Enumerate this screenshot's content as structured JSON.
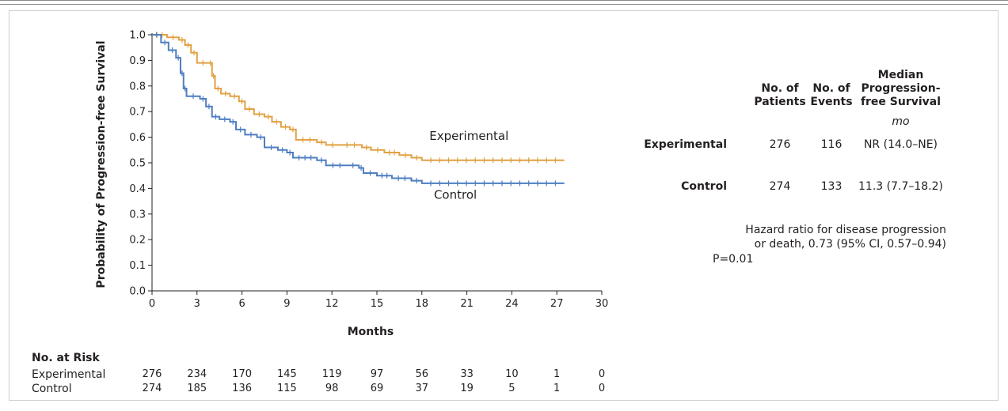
{
  "chart_data": {
    "type": "line",
    "title": "",
    "xlabel": "Months",
    "ylabel": "Probability of Progression-free Survival",
    "xlim": [
      0,
      30
    ],
    "ylim": [
      0,
      1.0
    ],
    "x_ticks": [
      "0",
      "3",
      "6",
      "9",
      "12",
      "15",
      "18",
      "21",
      "24",
      "27",
      "30"
    ],
    "y_ticks": [
      "0.0",
      "0.1",
      "0.2",
      "0.3",
      "0.4",
      "0.5",
      "0.6",
      "0.7",
      "0.8",
      "0.9",
      "1.0"
    ],
    "grid": false,
    "series": [
      {
        "name": "Experimental",
        "color": "#e2a144",
        "points": [
          [
            0,
            1.0
          ],
          [
            1,
            0.99
          ],
          [
            1.8,
            0.98
          ],
          [
            2.2,
            0.96
          ],
          [
            2.6,
            0.93
          ],
          [
            3,
            0.89
          ],
          [
            3.8,
            0.89
          ],
          [
            4.0,
            0.84
          ],
          [
            4.2,
            0.79
          ],
          [
            4.6,
            0.77
          ],
          [
            5.2,
            0.76
          ],
          [
            5.8,
            0.74
          ],
          [
            6.2,
            0.71
          ],
          [
            6.8,
            0.69
          ],
          [
            7.5,
            0.68
          ],
          [
            8.0,
            0.66
          ],
          [
            8.6,
            0.64
          ],
          [
            9.2,
            0.63
          ],
          [
            9.6,
            0.59
          ],
          [
            11,
            0.58
          ],
          [
            11.6,
            0.57
          ],
          [
            12.5,
            0.57
          ],
          [
            14,
            0.56
          ],
          [
            14.6,
            0.55
          ],
          [
            15.5,
            0.54
          ],
          [
            16.5,
            0.53
          ],
          [
            17.3,
            0.52
          ],
          [
            18,
            0.51
          ],
          [
            27.5,
            0.51
          ]
        ]
      },
      {
        "name": "Control",
        "color": "#4e7ec1",
        "points": [
          [
            0,
            1.0
          ],
          [
            0.6,
            0.97
          ],
          [
            1.1,
            0.94
          ],
          [
            1.6,
            0.91
          ],
          [
            1.9,
            0.85
          ],
          [
            2.1,
            0.79
          ],
          [
            2.3,
            0.76
          ],
          [
            3.2,
            0.75
          ],
          [
            3.6,
            0.72
          ],
          [
            4.0,
            0.68
          ],
          [
            4.5,
            0.67
          ],
          [
            5.2,
            0.66
          ],
          [
            5.6,
            0.63
          ],
          [
            6.2,
            0.61
          ],
          [
            7,
            0.6
          ],
          [
            7.5,
            0.56
          ],
          [
            8.4,
            0.55
          ],
          [
            9,
            0.54
          ],
          [
            9.4,
            0.52
          ],
          [
            11,
            0.51
          ],
          [
            11.6,
            0.49
          ],
          [
            13,
            0.49
          ],
          [
            13.8,
            0.48
          ],
          [
            14.1,
            0.46
          ],
          [
            15,
            0.45
          ],
          [
            16,
            0.44
          ],
          [
            17.3,
            0.43
          ],
          [
            18,
            0.42
          ],
          [
            27.5,
            0.42
          ]
        ]
      }
    ],
    "annotations": [
      {
        "text": "Experimental",
        "x": 18.5,
        "y": 0.59
      },
      {
        "text": "Control",
        "x": 18.8,
        "y": 0.36
      }
    ]
  },
  "summary_table": {
    "headers": {
      "patients": [
        "No. of",
        "Patients"
      ],
      "events": [
        "No. of",
        "Events"
      ],
      "median": [
        "Median",
        "Progression-",
        "free Survival"
      ]
    },
    "unit": "mo",
    "rows": [
      {
        "label": "Experimental",
        "patients": "276",
        "events": "116",
        "median": "NR (14.0–NE)"
      },
      {
        "label": "Control",
        "patients": "274",
        "events": "133",
        "median": "11.3 (7.7–18.2)"
      }
    ]
  },
  "hazard_note": [
    "Hazard ratio for disease progression",
    "or death, 0.73 (95% CI, 0.57–0.94)"
  ],
  "p_value": "P=0.01",
  "at_risk": {
    "title": "No. at Risk",
    "rows": [
      {
        "name": "Experimental",
        "values": [
          "276",
          "234",
          "170",
          "145",
          "119",
          "97",
          "56",
          "33",
          "10",
          "1",
          "0"
        ]
      },
      {
        "name": "Control",
        "values": [
          "274",
          "185",
          "136",
          "115",
          "98",
          "69",
          "37",
          "19",
          "5",
          "1",
          "0"
        ]
      }
    ]
  }
}
